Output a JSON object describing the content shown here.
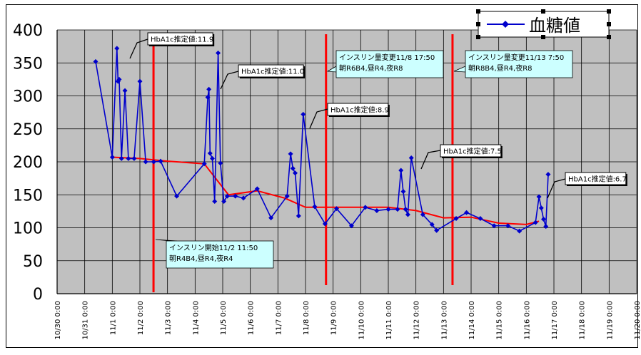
{
  "chart_data": {
    "type": "line",
    "title": "",
    "xlabel": "",
    "ylabel": "",
    "ylim": [
      0,
      400
    ],
    "yticks": [
      0,
      50,
      100,
      150,
      200,
      250,
      300,
      350,
      400
    ],
    "xlim": [
      "10/30 0:00",
      "11/20 0:00"
    ],
    "xtick_labels": [
      "10/30 0:00",
      "10/31 0:00",
      "11/1 0:00",
      "11/2 0:00",
      "11/3 0:00",
      "11/4 0:00",
      "11/5 0:00",
      "11/6 0:00",
      "11/7 0:00",
      "11/8 0:00",
      "11/9 0:00",
      "11/10 0:00",
      "11/11 0:00",
      "11/12 0:00",
      "11/13 0:00",
      "11/14 0:00",
      "11/15 0:00",
      "11/16 0:00",
      "11/17 0:00",
      "11/18 0:00",
      "11/19 0:00",
      "11/20 0:00"
    ],
    "grid": true,
    "legend": {
      "position": "top-right",
      "entries": [
        "血糖値"
      ]
    },
    "series": [
      {
        "name": "血糖値",
        "color": "#0000cc",
        "marker": "diamond",
        "points": [
          [
            "10/31 9:30",
            352
          ],
          [
            "11/1 0:00",
            207
          ],
          [
            "11/1 4:00",
            372
          ],
          [
            "11/1 5:00",
            322
          ],
          [
            "11/1 6:00",
            325
          ],
          [
            "11/1 8:00",
            205
          ],
          [
            "11/1 11:00",
            308
          ],
          [
            "11/1 14:00",
            205
          ],
          [
            "11/1 19:00",
            205
          ],
          [
            "11/2 0:00",
            322
          ],
          [
            "11/2 5:00",
            200
          ],
          [
            "11/2 12:00",
            200
          ],
          [
            "11/2 18:00",
            201
          ],
          [
            "11/3 8:00",
            148
          ],
          [
            "11/4 8:00",
            197
          ],
          [
            "11/4 11:00",
            298
          ],
          [
            "11/4 12:00",
            310
          ],
          [
            "11/4 13:00",
            213
          ],
          [
            "11/4 15:00",
            205
          ],
          [
            "11/4 17:00",
            140
          ],
          [
            "11/4 20:00",
            365
          ],
          [
            "11/4 22:00",
            198
          ],
          [
            "11/5 1:00",
            140
          ],
          [
            "11/5 4:00",
            148
          ],
          [
            "11/5 11:00",
            148
          ],
          [
            "11/5 18:00",
            145
          ],
          [
            "11/6 6:00",
            159
          ],
          [
            "11/6 18:00",
            115
          ],
          [
            "11/7 8:00",
            148
          ],
          [
            "11/7 11:00",
            212
          ],
          [
            "11/7 13:00",
            190
          ],
          [
            "11/7 15:00",
            183
          ],
          [
            "11/7 18:00",
            118
          ],
          [
            "11/7 22:00",
            272
          ],
          [
            "11/8 8:00",
            132
          ],
          [
            "11/8 17:00",
            106
          ],
          [
            "11/9 3:00",
            129
          ],
          [
            "11/9 16:00",
            103
          ],
          [
            "11/10 4:00",
            131
          ],
          [
            "11/10 14:00",
            126
          ],
          [
            "11/11 0:00",
            128
          ],
          [
            "11/11 8:00",
            128
          ],
          [
            "11/11 11:00",
            187
          ],
          [
            "11/11 13:00",
            155
          ],
          [
            "11/11 15:00",
            128
          ],
          [
            "11/11 17:00",
            120
          ],
          [
            "11/11 20:00",
            206
          ],
          [
            "11/12 6:00",
            120
          ],
          [
            "11/12 14:00",
            105
          ],
          [
            "11/12 18:00",
            96
          ],
          [
            "11/13 11:00",
            114
          ],
          [
            "11/13 20:00",
            123
          ],
          [
            "11/14 8:00",
            114
          ],
          [
            "11/14 20:00",
            103
          ],
          [
            "11/15 8:00",
            103
          ],
          [
            "11/15 18:00",
            95
          ],
          [
            "11/16 8:00",
            108
          ],
          [
            "11/16 11:00",
            147
          ],
          [
            "11/16 13:00",
            130
          ],
          [
            "11/16 15:00",
            113
          ],
          [
            "11/16 17:00",
            102
          ],
          [
            "11/16 19:00",
            181
          ]
        ]
      },
      {
        "name": "",
        "color": "#ff0000",
        "marker": "none",
        "points": [
          [
            "11/1 0:00",
            207
          ],
          [
            "11/2 0:00",
            205
          ],
          [
            "11/3 0:00",
            201
          ],
          [
            "11/4 8:00",
            197
          ],
          [
            "11/5 5:00",
            150
          ],
          [
            "11/6 6:00",
            156
          ],
          [
            "11/7 6:00",
            145
          ],
          [
            "11/8 0:00",
            131
          ],
          [
            "11/9 0:00",
            131
          ],
          [
            "11/10 0:00",
            131
          ],
          [
            "11/11 0:00",
            131
          ],
          [
            "11/12 0:00",
            126
          ],
          [
            "11/13 0:00",
            115
          ],
          [
            "11/14 0:00",
            116
          ],
          [
            "11/15 0:00",
            107
          ],
          [
            "11/16 0:00",
            105
          ],
          [
            "11/16 11:00",
            110
          ]
        ]
      }
    ],
    "events": [
      {
        "x": "11/2 11:50",
        "lines": [
          "インスリン開始11/2 11:50",
          "朝R4B4,昼R4,夜R4"
        ]
      },
      {
        "x": "11/8 17:50",
        "lines": [
          "インスリン量変更11/8 17:50",
          "朝R6B4,昼R4,夜R8"
        ]
      },
      {
        "x": "11/13 7:50",
        "lines": [
          "インスリン量変更11/13 7:50",
          "朝R8B4,昼R4,夜R8"
        ]
      }
    ],
    "annotations": [
      {
        "text": "HbA1c推定値:11.9",
        "x": "11/1 10:00"
      },
      {
        "text": "HbA1c推定値:11.0",
        "x": "11/4 22:00"
      },
      {
        "text": "HbA1c推定値:8.9",
        "x": "11/8 10:00"
      },
      {
        "text": "HbA1c推定値:7.5",
        "x": "11/12 10:00"
      },
      {
        "text": "HbA1c推定値:6.7",
        "x": "11/16 20:00"
      }
    ]
  },
  "style": {
    "plot_background": "#c0c0c0",
    "grid_color": "#000000",
    "event_line_color": "#ff0000",
    "callout_fill": "#ccffff",
    "label_fill": "#ffffff"
  }
}
